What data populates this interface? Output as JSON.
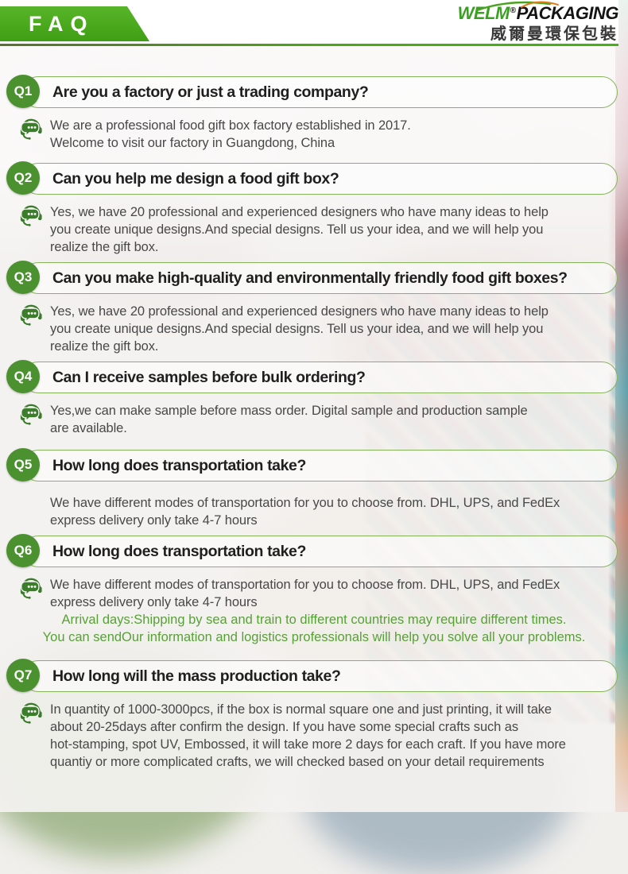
{
  "header": {
    "title": "FAQ",
    "logo": {
      "brand": "WELM",
      "brand_suffix": "PACKAGING",
      "registered_mark": "®",
      "tagline_cn": "威爾曼環保包裝"
    }
  },
  "icons": {
    "answer_icon": "chat-headset-icon",
    "logo_icon": "leaf-swoosh-icon"
  },
  "colors": {
    "banner_green": "#4aa81d",
    "badge_green": "#4b9130",
    "pill_border_green": "#85b45b",
    "icon_green": "#3a7c2b",
    "highlight_green": "#58a038",
    "question_text": "#1f1f1f",
    "answer_text": "#484848"
  },
  "faqs": [
    {
      "id": "Q1",
      "question": "Are you a factory or just a trading company?",
      "has_icon": true,
      "answer_lines": [
        "We are a professional food gift box factory established in 2017.",
        "Welcome to visit our factory in Guangdong, China"
      ],
      "highlight_lines": []
    },
    {
      "id": "Q2",
      "question": "Can you help me design a food gift box?",
      "has_icon": true,
      "answer_lines": [
        "Yes, we have 20 professional and experienced designers who have many ideas to help",
        "you create unique designs.And special designs. Tell us your idea, and we will help you",
        "realize the gift box."
      ],
      "highlight_lines": []
    },
    {
      "id": "Q3",
      "question": "Can you make high-quality and environmentally friendly food gift boxes?",
      "has_icon": true,
      "answer_lines": [
        "Yes, we have 20 professional and experienced designers who have many ideas to help",
        "you create unique designs.And special designs. Tell us your idea, and we will help you",
        "realize the gift box."
      ],
      "highlight_lines": []
    },
    {
      "id": "Q4",
      "question": "Can I receive samples before bulk ordering?",
      "has_icon": true,
      "answer_lines": [
        "Yes,we can make sample before mass order. Digital sample and production sample",
        "are available."
      ],
      "highlight_lines": []
    },
    {
      "id": "Q5",
      "question": "How long does transportation take?",
      "has_icon": false,
      "answer_lines": [
        "We have different modes of transportation for you to choose from. DHL, UPS, and FedEx",
        "express delivery only take 4-7 hours"
      ],
      "highlight_lines": []
    },
    {
      "id": "Q6",
      "question": "How long does transportation take?",
      "has_icon": true,
      "answer_lines": [
        "We have different modes of transportation for you to choose from. DHL, UPS, and FedEx",
        "express delivery only take 4-7 hours"
      ],
      "highlight_lines": [
        "Arrival days:Shipping by sea and train to different countries may require different times.",
        "You can sendOur information and logistics professionals will help you solve all your problems."
      ]
    },
    {
      "id": "Q7",
      "question": "How long will the mass production take?",
      "has_icon": true,
      "answer_lines": [
        "In quantity of 1000-3000pcs, if the box is normal square one and just printing, it will take",
        "about 20-25days after confirm the design. If you have some special crafts such as",
        "hot-stamping, spot UV, Embossed, it will take more 2 days for each craft. If you have more",
        "quantiy or more complicated crafts, we will checked based on your detail requirements"
      ],
      "highlight_lines": []
    }
  ]
}
